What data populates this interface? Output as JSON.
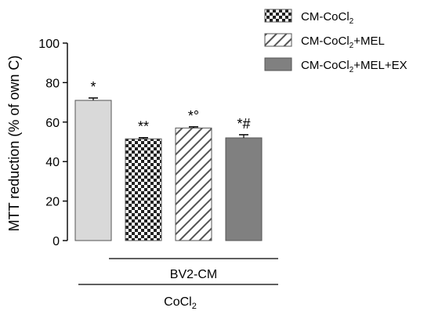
{
  "chart_data": {
    "type": "bar",
    "ylabel": "MTT reduction (% of own C)",
    "ylim": [
      0,
      100
    ],
    "yticks": [
      "0",
      "20",
      "40",
      "60",
      "80",
      "100"
    ],
    "grid": false,
    "legend_position": "top-right",
    "categories": [
      "CoCl2",
      "CM-CoCl2",
      "CM-CoCl2+MEL",
      "CM-CoCl2+MEL+EX"
    ],
    "values": [
      71,
      51.5,
      57,
      52
    ],
    "errors": [
      1.2,
      0.6,
      0.6,
      1.6
    ],
    "significance": [
      "*",
      "**",
      "*°",
      "*#"
    ],
    "legend": [
      {
        "label": "CM-CoCl",
        "subscript": "2",
        "suffix": "",
        "pattern": "checker"
      },
      {
        "label": "CM-CoCl",
        "subscript": "2",
        "suffix": "+MEL",
        "pattern": "hatch"
      },
      {
        "label": "CM-CoCl",
        "subscript": "2",
        "suffix": "+MEL+EX",
        "pattern": "grey"
      }
    ],
    "group_labels": [
      {
        "label": "BV2-CM",
        "subscript": "",
        "from": 1,
        "to": 3
      },
      {
        "label": "CoCl",
        "subscript": "2",
        "from": 0,
        "to": 3
      }
    ],
    "colors": {
      "axis": "#000000",
      "bar_first": "#d9d9d9",
      "bar_grey": "#808080",
      "checker_dark": "#222222",
      "hatch_stroke": "#555555",
      "bar_outline": "#555555"
    }
  }
}
